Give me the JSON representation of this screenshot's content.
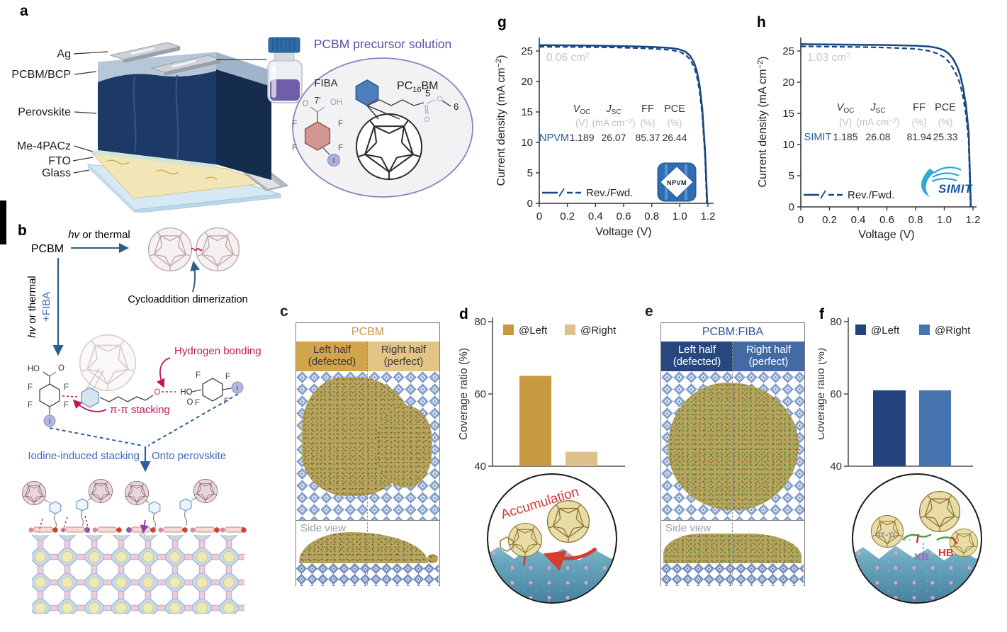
{
  "panel_labels": {
    "a": "a",
    "b": "b",
    "c": "c",
    "d": "d",
    "e": "e",
    "f": "f",
    "g": "g",
    "h": "h"
  },
  "palette": {
    "curve_navy": "#17477f",
    "gold_dark": "#c9993f",
    "gold_light": "#ddc08a",
    "blue_dark": "#24437c",
    "blue_mid": "#4574ae",
    "accent_purple": "#5a52a8",
    "annotation_red": "#c2185b",
    "label_blue": "#3f6ab5"
  },
  "a": {
    "layer_labels": [
      "Ag",
      "PCBM/BCP",
      "Perovskite",
      "Me-4PACz",
      "FTO",
      "Glass"
    ],
    "solution_title": "PCBM precursor solution",
    "fiba": {
      "name": "FIBA",
      "pos": "7'",
      "o": "O",
      "oh": "OH",
      "f1": "F",
      "f2": "F",
      "f3": "F",
      "f4": "F",
      "i": "I"
    },
    "pcbm": {
      "pre": "PC",
      "sub": "16",
      "post": "BM",
      "c5": "5",
      "c6": "6",
      "o1": "O",
      "o2": "O"
    }
  },
  "b": {
    "pcbm": "PCBM",
    "hv_i": "hv",
    "hv_rest": " or thermal",
    "plus_fiba": "+FIBA",
    "cyclo": "Cycloaddition dimerization",
    "hbond": "Hydrogen bonding",
    "pipi": "π-π stacking",
    "iodine": "Iodine-induced stacking",
    "onto": "Onto perovskite",
    "ester_o": "O",
    "left": {
      "ho": "HO",
      "o": "O",
      "f1": "F",
      "f2": "F",
      "f3": "F",
      "f4": "F",
      "i": "I"
    },
    "right": {
      "ho": "HO",
      "o": "O",
      "f1": "F",
      "f2": "F",
      "f3": "F",
      "f4": "F",
      "i": "I"
    }
  },
  "c": {
    "title": "PCBM",
    "l1": "Left half",
    "l2": "(defected)",
    "r1": "Right half",
    "r2": "(perfect)",
    "side": "Side view"
  },
  "e": {
    "title": "PCBM:FIBA",
    "l1": "Left half",
    "l2": "(defected)",
    "r1": "Right half",
    "r2": "(perfect)",
    "side": "Side view"
  },
  "d_inset": {
    "annotation": "Accumulation"
  },
  "f_inset": {
    "pi_pi": "π-π",
    "xb": "XB",
    "hb": "HB"
  },
  "chart_data": [
    {
      "id": "g",
      "type": "line",
      "color": "#17477f",
      "area_main": "0.06 cm",
      "area_sup": "2",
      "xlabel": "Voltage (V)",
      "ylabel_parts": [
        "Current density (mA cm",
        "−2",
        ")"
      ],
      "xtick_labels": [
        "0",
        "0.2",
        "0.4",
        "0.6",
        "0.8",
        "1.0",
        "1.2"
      ],
      "ytick_labels": [
        "0",
        "5",
        "10",
        "15",
        "20",
        "25"
      ],
      "xlim": [
        0,
        1.2
      ],
      "ylim": [
        0,
        27
      ],
      "legend_label": "Rev./Fwd.",
      "logo_text": "NPVM",
      "table": {
        "headers": {
          "voc_main": "V",
          "voc_sub": "OC",
          "jsc_main": "J",
          "jsc_sub": "SC",
          "ff": "FF",
          "pce": "PCE"
        },
        "units": {
          "voc": "(V)",
          "jsc_pre": "(mA cm",
          "jsc_sup": "−2",
          "jsc_post": ")",
          "ff": "(%)",
          "pce": "(%)"
        },
        "row": {
          "device": "NPVM",
          "voc": "1.189",
          "jsc": "26.07",
          "ff": "85.37",
          "pce": "26.44"
        }
      },
      "series": [
        {
          "name": "Rev.",
          "line": "solid",
          "points": [
            [
              0,
              25.95
            ],
            [
              0.2,
              25.93
            ],
            [
              0.4,
              25.88
            ],
            [
              0.6,
              25.8
            ],
            [
              0.7,
              25.75
            ],
            [
              0.8,
              25.68
            ],
            [
              0.9,
              25.55
            ],
            [
              0.95,
              25.45
            ],
            [
              1.0,
              25.25
            ],
            [
              1.04,
              24.9
            ],
            [
              1.07,
              24.3
            ],
            [
              1.1,
              23.2
            ],
            [
              1.12,
              21.8
            ],
            [
              1.14,
              19.5
            ],
            [
              1.16,
              15.5
            ],
            [
              1.18,
              8.5
            ],
            [
              1.195,
              0
            ]
          ]
        },
        {
          "name": "Fwd.",
          "line": "dashed",
          "points": [
            [
              0,
              25.7
            ],
            [
              0.2,
              25.68
            ],
            [
              0.4,
              25.63
            ],
            [
              0.6,
              25.55
            ],
            [
              0.8,
              25.4
            ],
            [
              0.9,
              25.25
            ],
            [
              0.95,
              25.1
            ],
            [
              1.0,
              24.85
            ],
            [
              1.04,
              24.4
            ],
            [
              1.07,
              23.7
            ],
            [
              1.1,
              22.5
            ],
            [
              1.12,
              21.0
            ],
            [
              1.14,
              18.5
            ],
            [
              1.16,
              14.5
            ],
            [
              1.18,
              7.5
            ],
            [
              1.192,
              0
            ]
          ]
        }
      ]
    },
    {
      "id": "h",
      "type": "line",
      "color": "#17477f",
      "area_main": "1.03 cm",
      "area_sup": "2",
      "xlabel": "Voltage (V)",
      "ylabel_parts": [
        "Current density (mA cm",
        "−2",
        ")"
      ],
      "xtick_labels": [
        "0",
        "0.2",
        "0.4",
        "0.6",
        "0.8",
        "1.0",
        "1.2"
      ],
      "ytick_labels": [
        "0",
        "5",
        "10",
        "15",
        "20",
        "25"
      ],
      "xlim": [
        0,
        1.2
      ],
      "ylim": [
        0,
        27
      ],
      "legend_label": "Rev./Fwd.",
      "logo_text": "SIMIT",
      "table": {
        "headers": {
          "voc_main": "V",
          "voc_sub": "OC",
          "jsc_main": "J",
          "jsc_sub": "SC",
          "ff": "FF",
          "pce": "PCE"
        },
        "units": {
          "voc": "(V)",
          "jsc_pre": "(mA cm",
          "jsc_sup": "−2",
          "jsc_post": ")",
          "ff": "(%)",
          "pce": "(%)"
        },
        "row": {
          "device": "SIMIT",
          "voc": "1.185",
          "jsc": "26.08",
          "ff": "81.94",
          "pce": "25.33"
        }
      },
      "series": [
        {
          "name": "Rev.",
          "line": "solid",
          "points": [
            [
              0,
              26.1
            ],
            [
              0.2,
              26.05
            ],
            [
              0.4,
              26.0
            ],
            [
              0.6,
              25.95
            ],
            [
              0.8,
              25.85
            ],
            [
              0.9,
              25.7
            ],
            [
              0.95,
              25.5
            ],
            [
              1.0,
              25.1
            ],
            [
              1.03,
              24.6
            ],
            [
              1.06,
              23.8
            ],
            [
              1.09,
              22.5
            ],
            [
              1.11,
              21.2
            ],
            [
              1.13,
              19.3
            ],
            [
              1.15,
              16.5
            ],
            [
              1.17,
              12.0
            ],
            [
              1.185,
              0
            ]
          ]
        },
        {
          "name": "Fwd.",
          "line": "dashed",
          "points": [
            [
              0,
              25.75
            ],
            [
              0.2,
              25.7
            ],
            [
              0.4,
              25.65
            ],
            [
              0.6,
              25.55
            ],
            [
              0.8,
              25.35
            ],
            [
              0.9,
              25.0
            ],
            [
              0.95,
              24.6
            ],
            [
              1.0,
              24.0
            ],
            [
              1.03,
              23.3
            ],
            [
              1.06,
              22.3
            ],
            [
              1.09,
              21.0
            ],
            [
              1.11,
              19.7
            ],
            [
              1.13,
              17.8
            ],
            [
              1.15,
              15.0
            ],
            [
              1.17,
              10.5
            ],
            [
              1.183,
              0
            ]
          ]
        }
      ]
    },
    {
      "id": "d",
      "type": "bar",
      "ylabel": "Coverage ratio (%)",
      "ylim": [
        40,
        80
      ],
      "ytick_labels": [
        "80",
        "60",
        "40"
      ],
      "categories": [
        "@Left",
        "@Right"
      ],
      "values": [
        65,
        44
      ],
      "colors": [
        "#c9993f",
        "#ddc08a"
      ]
    },
    {
      "id": "f",
      "type": "bar",
      "ylabel": "Coverage ratio (%)",
      "ylim": [
        40,
        80
      ],
      "ytick_labels": [
        "80",
        "60",
        "40"
      ],
      "categories": [
        "@Left",
        "@Right"
      ],
      "values": [
        61,
        61
      ],
      "colors": [
        "#24437c",
        "#4574ae"
      ]
    }
  ]
}
